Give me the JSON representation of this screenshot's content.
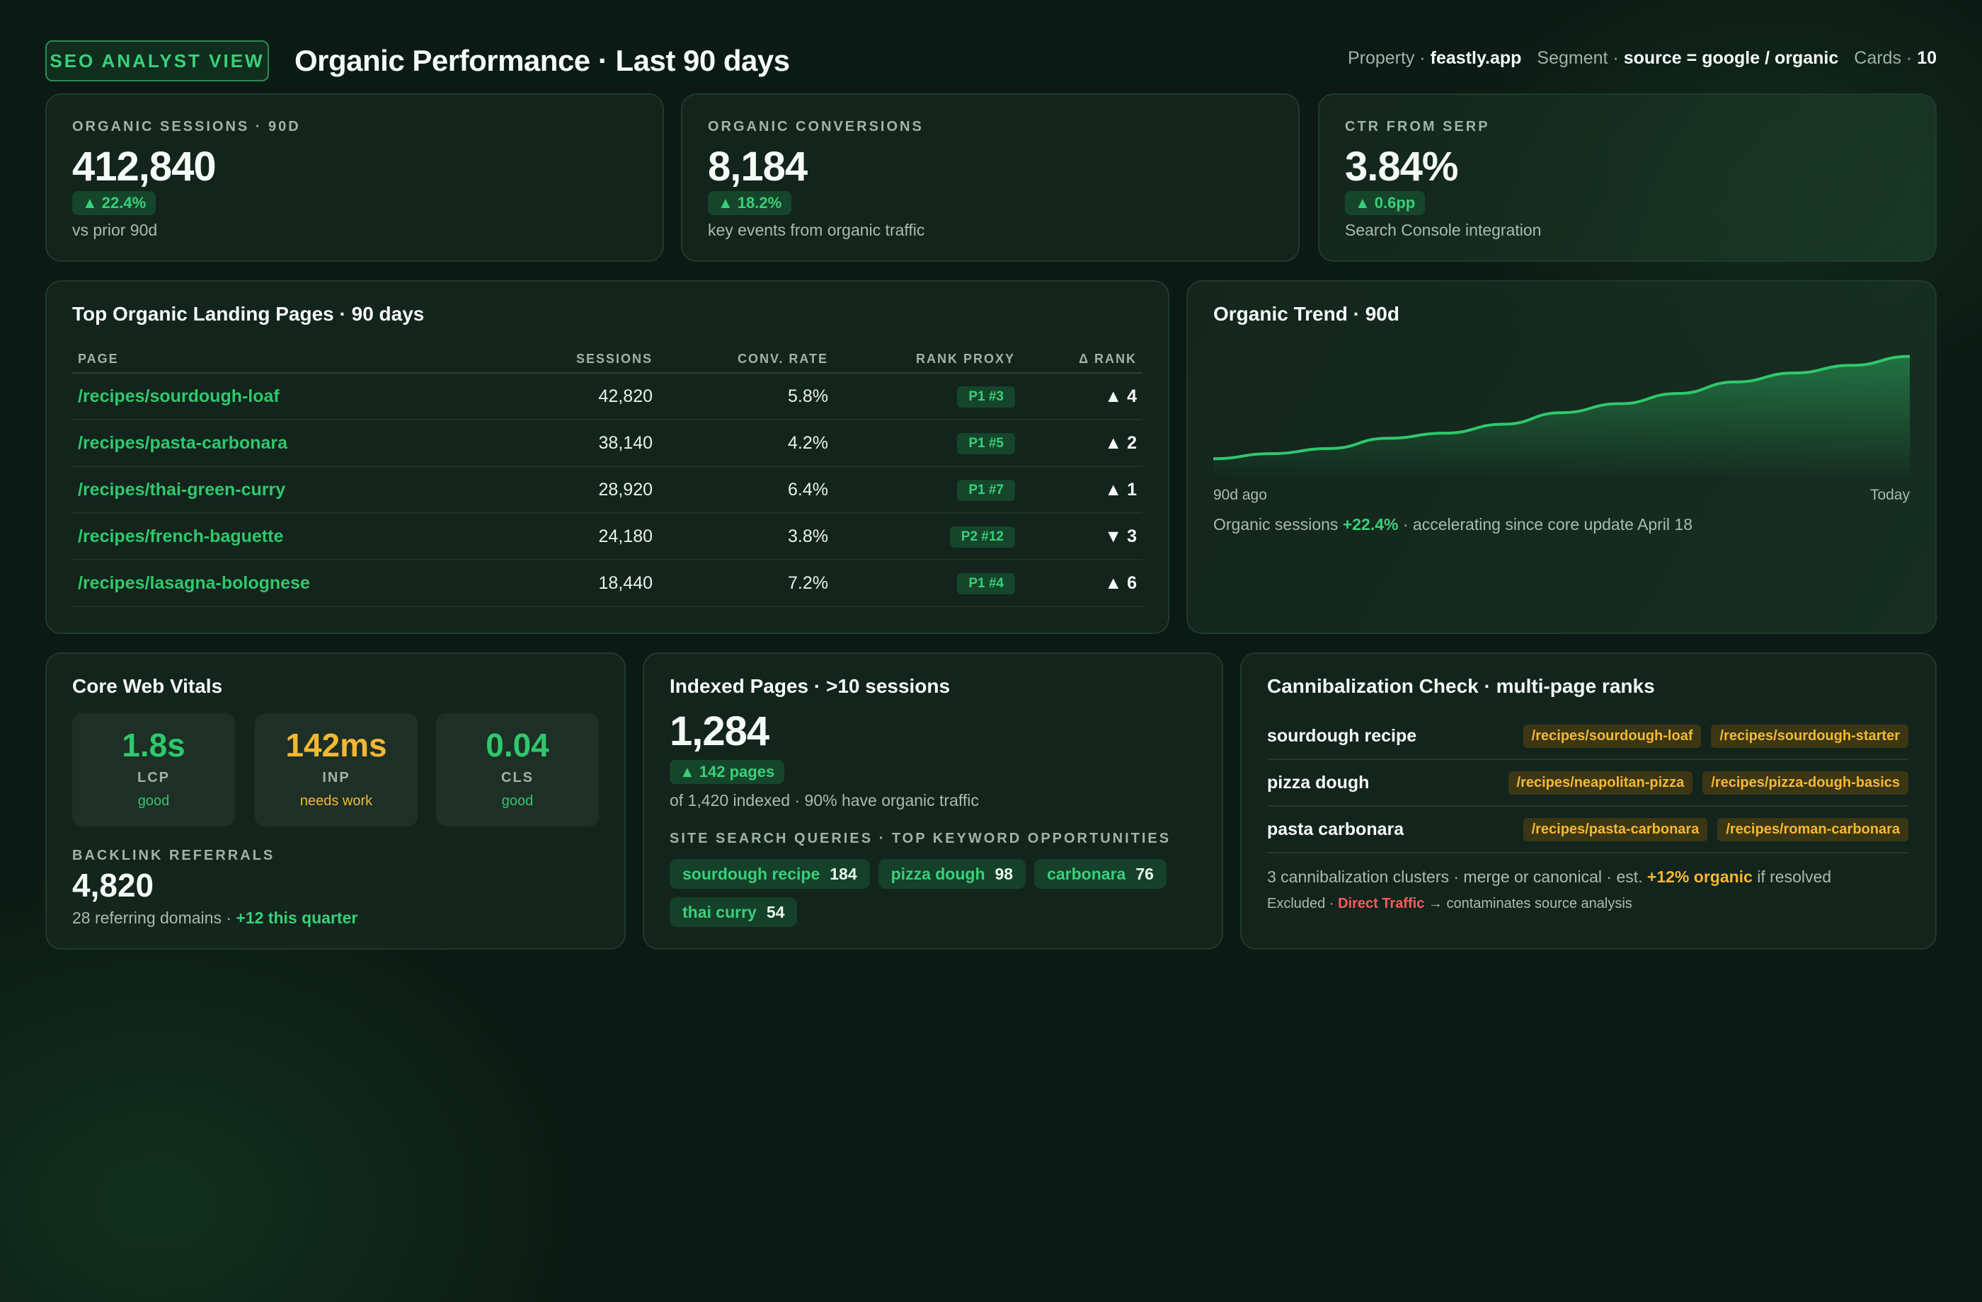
{
  "header": {
    "view_badge": "SEO ANALYST VIEW",
    "title": "Organic Performance · Last 90 days",
    "property_label": "Property ·",
    "property_value": "feastly.app",
    "segment_label": "Segment ·",
    "segment_value": "source = google / organic",
    "cards_label": "Cards ·",
    "cards_value": "10"
  },
  "kpis": [
    {
      "label": "ORGANIC SESSIONS · 90D",
      "value": "412,840",
      "delta": "22.4%",
      "sub": "vs prior 90d"
    },
    {
      "label": "ORGANIC CONVERSIONS",
      "value": "8,184",
      "delta": "18.2%",
      "sub": "key events from organic traffic"
    },
    {
      "label": "CTR FROM SERP",
      "value": "3.84%",
      "delta": "0.6pp",
      "sub": "Search Console integration"
    }
  ],
  "landing": {
    "title": "Top Organic Landing Pages · 90 days",
    "columns": [
      "PAGE",
      "SESSIONS",
      "CONV. RATE",
      "RANK PROXY",
      "Δ RANK"
    ],
    "rows": [
      {
        "page": "/recipes/sourdough-loaf",
        "sessions": "42,820",
        "conv": "5.8%",
        "rank": "P1 #3",
        "dir": "▲",
        "delta": "4"
      },
      {
        "page": "/recipes/pasta-carbonara",
        "sessions": "38,140",
        "conv": "4.2%",
        "rank": "P1 #5",
        "dir": "▲",
        "delta": "2"
      },
      {
        "page": "/recipes/thai-green-curry",
        "sessions": "28,920",
        "conv": "6.4%",
        "rank": "P1 #7",
        "dir": "▲",
        "delta": "1"
      },
      {
        "page": "/recipes/french-baguette",
        "sessions": "24,180",
        "conv": "3.8%",
        "rank": "P2 #12",
        "dir": "▼",
        "delta": "3"
      },
      {
        "page": "/recipes/lasagna-bolognese",
        "sessions": "18,440",
        "conv": "7.2%",
        "rank": "P1 #4",
        "dir": "▲",
        "delta": "6"
      }
    ]
  },
  "trend": {
    "title": "Organic Trend · 90d",
    "x_start": "90d ago",
    "x_end": "Today",
    "note_prefix": "Organic sessions ",
    "note_value": "+22.4%",
    "note_suffix": " · accelerating since core update April 18",
    "line_color": "#2fc86c"
  },
  "chart_data": {
    "type": "area",
    "x": [
      "90d ago",
      "",
      "",
      "",
      "",
      "",
      "",
      "",
      "",
      "",
      "",
      "",
      "Today"
    ],
    "series": [
      {
        "values": [
          100,
          104,
          108,
          116,
          120,
          127,
          136,
          143,
          151,
          160,
          167,
          173,
          180
        ]
      }
    ],
    "xlabel": "",
    "ylabel": "",
    "grid": false
  },
  "cwv": {
    "title": "Core Web Vitals",
    "metrics": [
      {
        "value": "1.8s",
        "name": "LCP",
        "status": "good",
        "color": "#2fc86c"
      },
      {
        "value": "142ms",
        "name": "INP",
        "status": "needs work",
        "color": "#f3b832"
      },
      {
        "value": "0.04",
        "name": "CLS",
        "status": "good",
        "color": "#2fc86c"
      }
    ],
    "backlink_label": "BACKLINK REFERRALS",
    "backlink_value": "4,820",
    "backlink_sub": "28 referring domains · ",
    "backlink_highlight": "+12 this quarter"
  },
  "indexed": {
    "title": "Indexed Pages · >10 sessions",
    "value": "1,284",
    "delta": "142 pages",
    "sub": "of 1,420 indexed · 90% have organic traffic",
    "queries_label": "SITE SEARCH QUERIES · TOP KEYWORD OPPORTUNITIES",
    "queries": [
      {
        "term": "sourdough recipe",
        "count": "184"
      },
      {
        "term": "pizza dough",
        "count": "98"
      },
      {
        "term": "carbonara",
        "count": "76"
      },
      {
        "term": "thai curry",
        "count": "54"
      }
    ]
  },
  "cannibalization": {
    "title": "Cannibalization Check · multi-page ranks",
    "rows": [
      {
        "keyword": "sourdough recipe",
        "urls": [
          "/recipes/sourdough-loaf",
          "/recipes/sourdough-starter"
        ]
      },
      {
        "keyword": "pizza dough",
        "urls": [
          "/recipes/neapolitan-pizza",
          "/recipes/pizza-dough-basics"
        ]
      },
      {
        "keyword": "pasta carbonara",
        "urls": [
          "/recipes/pasta-carbonara",
          "/recipes/roman-carbonara"
        ]
      }
    ],
    "summary_prefix": "3 cannibalization clusters · merge or canonical · est. ",
    "summary_highlight": "+12% organic",
    "summary_suffix": " if resolved",
    "excluded_prefix": "Excluded · ",
    "excluded_highlight": "Direct Traffic",
    "excluded_suffix": " → contaminates source analysis"
  }
}
